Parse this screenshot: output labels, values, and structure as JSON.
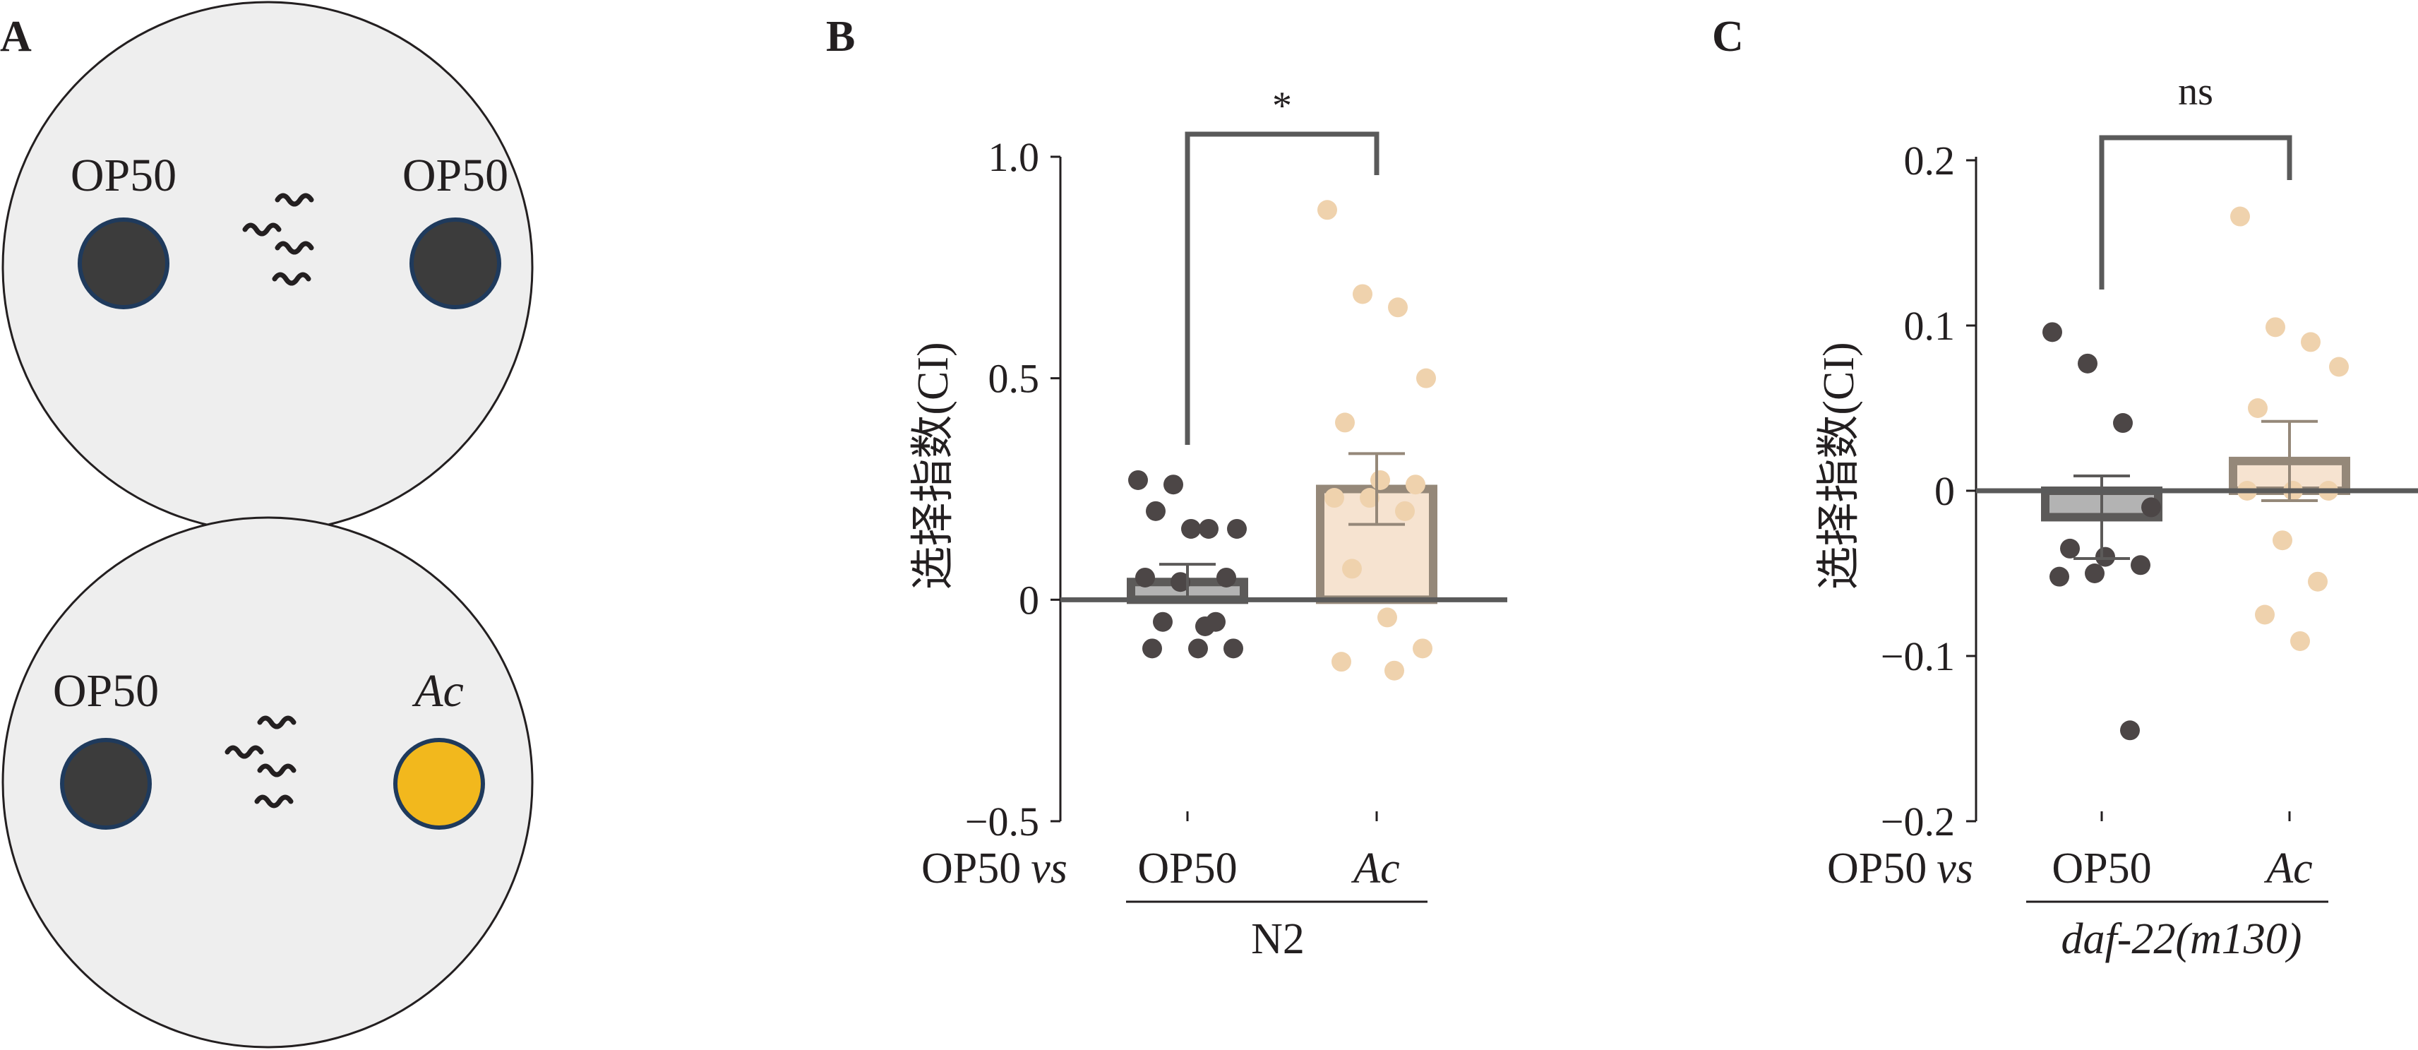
{
  "colors": {
    "plate_fill": "#eeeeee",
    "plate_stroke": "#231f20",
    "food_op50": "#3c3c3c",
    "food_ac": "#f2b81d",
    "food_ring": "#1f3a5c",
    "op50_bar_fill": "#b3b3b3",
    "op50_bar_stroke": "#5c5a59",
    "op50_dot": "#4c4646",
    "ac_bar_fill": "#f6e3d0",
    "ac_bar_stroke": "#958879",
    "ac_dot": "#efd2ad",
    "axis": "#231f20",
    "bracket": "#5a5a5a"
  },
  "panelA": {
    "label": "A",
    "top_plate": {
      "left_food_label": "OP50",
      "right_food_label": "OP50",
      "right_food_type": "op50",
      "worms_icon": "worms-icon"
    },
    "bottom_plate": {
      "left_food_label": "OP50",
      "right_food_label": "Ac",
      "right_food_type": "ac",
      "worms_icon": "worms-icon"
    }
  },
  "panelB": {
    "label": "B",
    "ylabel": "选择指数(CI)",
    "yticks": [
      {
        "v": 1.0,
        "t": "1.0"
      },
      {
        "v": 0.5,
        "t": "0.5"
      },
      {
        "v": 0,
        "t": "0"
      },
      {
        "v": -0.5,
        "t": "−0.5"
      }
    ],
    "xprefix_main": "OP50",
    "xprefix_vs": "vs",
    "strain": "N2",
    "significance": "*"
  },
  "panelC": {
    "label": "C",
    "ylabel": "选择指数(CI)",
    "yticks": [
      {
        "v": 0.2,
        "t": "0.2"
      },
      {
        "v": 0.1,
        "t": "0.1"
      },
      {
        "v": 0,
        "t": "0"
      },
      {
        "v": -0.1,
        "t": "−0.1"
      },
      {
        "v": -0.2,
        "t": "−0.2"
      }
    ],
    "xprefix_main": "OP50",
    "xprefix_vs": "vs",
    "strain": "daf-22(m130)",
    "significance": "ns"
  },
  "chart_data": [
    {
      "type": "bar",
      "panel": "B",
      "ylabel": "选择指数(CI)",
      "ylim": [
        -0.5,
        1.0
      ],
      "categories": [
        "OP50",
        "Ac"
      ],
      "group": "N2",
      "means": [
        0.04,
        0.25
      ],
      "sem": [
        0.04,
        0.08
      ],
      "points": [
        [
          0.27,
          0.26,
          0.16,
          0.16,
          0.2,
          0.16,
          0.05,
          0.05,
          0.04,
          -0.05,
          -0.05,
          -0.11,
          -0.11,
          -0.11,
          -0.06
        ],
        [
          0.88,
          0.69,
          0.66,
          0.5,
          0.4,
          0.27,
          0.26,
          0.23,
          0.23,
          0.2,
          0.07,
          -0.04,
          -0.11,
          -0.14,
          -0.16
        ]
      ],
      "significance": "*"
    },
    {
      "type": "bar",
      "panel": "C",
      "ylabel": "选择指数(CI)",
      "ylim": [
        -0.2,
        0.2
      ],
      "categories": [
        "OP50",
        "Ac"
      ],
      "group": "daf-22(m130)",
      "means": [
        -0.016,
        0.018
      ],
      "sem": [
        0.025,
        0.024
      ],
      "points": [
        [
          0.096,
          0.077,
          0.041,
          -0.01,
          -0.035,
          -0.04,
          -0.045,
          -0.052,
          -0.05,
          -0.145
        ],
        [
          0.166,
          0.099,
          0.09,
          0.075,
          0.05,
          0.0,
          0.0,
          0.0,
          -0.03,
          -0.055,
          -0.075,
          -0.091
        ]
      ],
      "significance": "ns"
    }
  ]
}
